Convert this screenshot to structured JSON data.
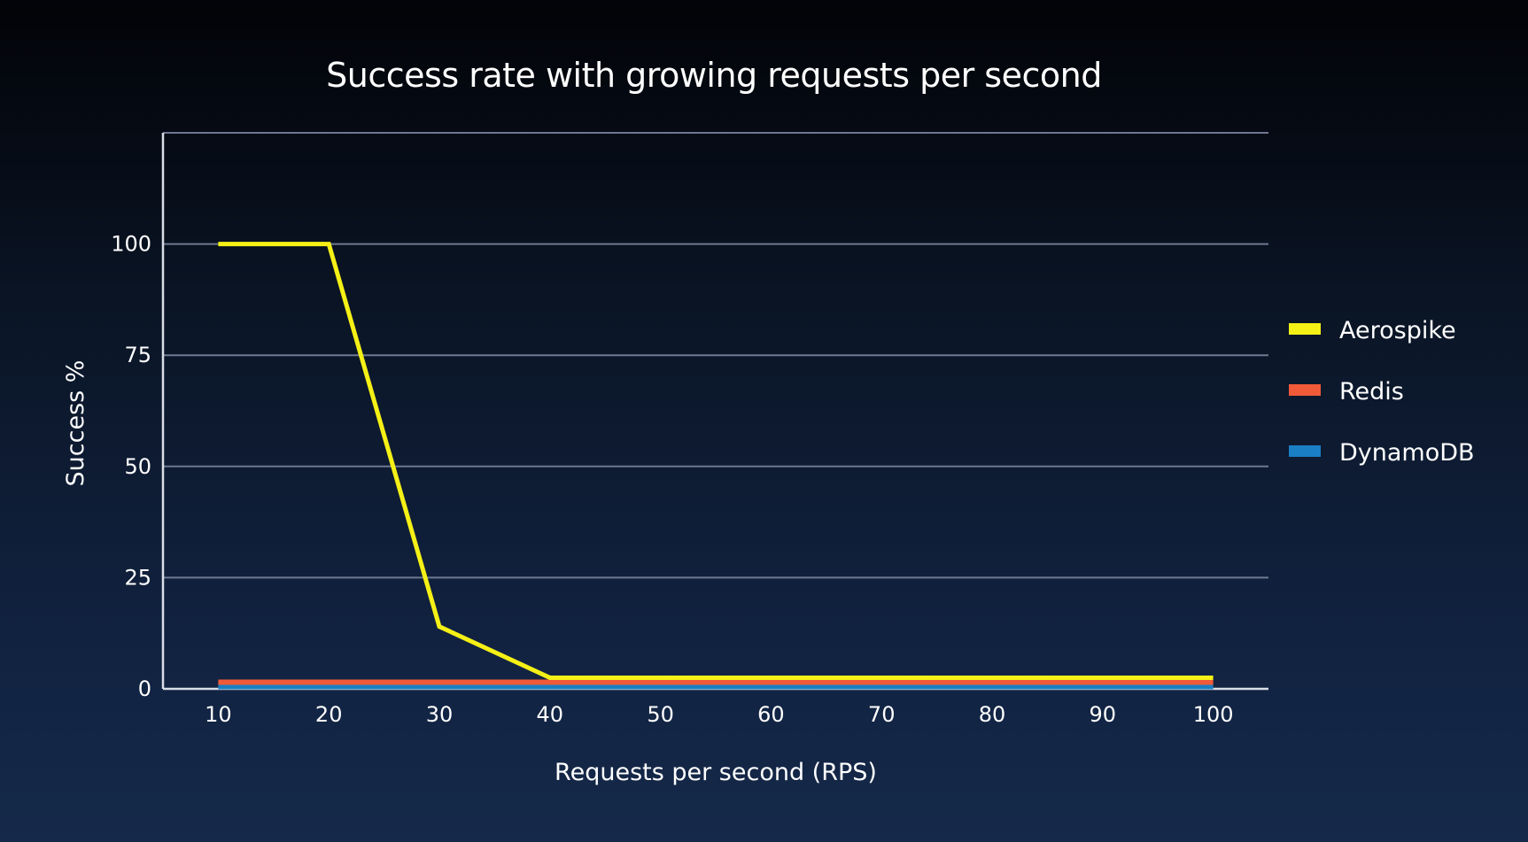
{
  "chart_data": {
    "type": "line",
    "title": "Success rate with growing requests per second",
    "xlabel": "Requests per second (RPS)",
    "ylabel": "Success %",
    "x": [
      10,
      20,
      30,
      40,
      50,
      60,
      70,
      80,
      90,
      100
    ],
    "x_tick_labels": [
      "10",
      "20",
      "30",
      "40",
      "50",
      "60",
      "70",
      "80",
      "90",
      "100"
    ],
    "y_ticks": [
      0,
      25,
      50,
      75,
      100
    ],
    "y_tick_labels": [
      "0",
      "25",
      "50",
      "75",
      "100"
    ],
    "ylim": [
      0,
      125
    ],
    "xlim": [
      5,
      105
    ],
    "grid": true,
    "legend_position": "right",
    "series": [
      {
        "name": "Aerospike",
        "color": "#f5f016",
        "values": [
          100,
          100,
          14,
          2.5,
          2.5,
          2.5,
          2.5,
          2.5,
          2.5,
          2.5
        ]
      },
      {
        "name": "Redis",
        "color": "#f05a38",
        "values": [
          1.5,
          1.5,
          1.5,
          1.5,
          1.5,
          1.5,
          1.5,
          1.5,
          1.5,
          1.5
        ]
      },
      {
        "name": "DynamoDB",
        "color": "#1a7fc4",
        "values": [
          0.5,
          0.5,
          0.5,
          0.5,
          0.5,
          0.5,
          0.5,
          0.5,
          0.5,
          0.5
        ]
      }
    ]
  }
}
